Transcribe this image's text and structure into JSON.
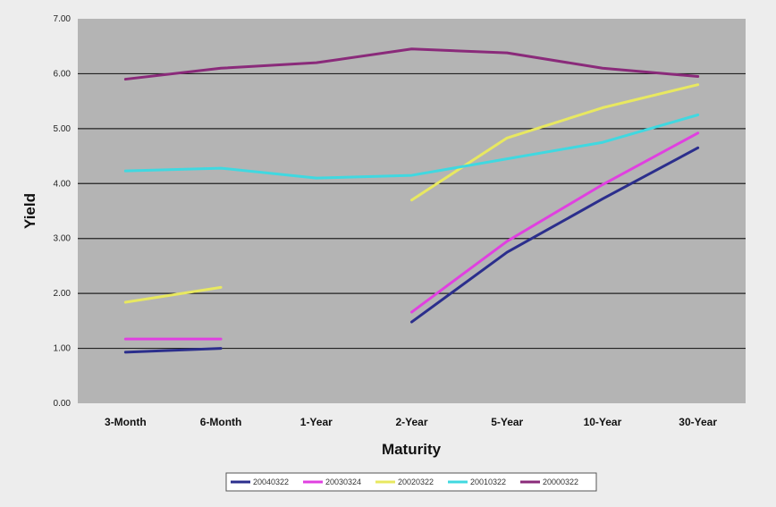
{
  "chart_data": {
    "type": "line",
    "title": "",
    "xlabel": "Maturity",
    "ylabel": "Yield",
    "categories": [
      "3-Month",
      "6-Month",
      "1-Year",
      "2-Year",
      "5-Year",
      "10-Year",
      "30-Year"
    ],
    "ylim": [
      0,
      7
    ],
    "yticks": [
      "0.00",
      "1.00",
      "2.00",
      "3.00",
      "4.00",
      "5.00",
      "6.00",
      "7.00"
    ],
    "grid": true,
    "legend_position": "bottom",
    "series": [
      {
        "name": "20040322",
        "color": "#2b2e8c",
        "values": [
          0.93,
          1.0,
          null,
          1.48,
          2.75,
          3.72,
          4.65
        ]
      },
      {
        "name": "20030324",
        "color": "#e040e0",
        "values": [
          1.17,
          1.17,
          null,
          1.66,
          2.95,
          3.98,
          4.92
        ]
      },
      {
        "name": "20020322",
        "color": "#e8e860",
        "values": [
          1.84,
          2.11,
          null,
          3.7,
          4.83,
          5.38,
          5.8
        ]
      },
      {
        "name": "20010322",
        "color": "#40d8e0",
        "values": [
          4.23,
          4.28,
          4.1,
          4.15,
          4.45,
          4.75,
          5.25
        ]
      },
      {
        "name": "20000322",
        "color": "#8a2a7a",
        "values": [
          5.9,
          6.1,
          6.2,
          6.45,
          6.38,
          6.1,
          5.95
        ]
      }
    ],
    "colors": {
      "plot_background": "#b4b4b4",
      "gridline": "#222222"
    }
  }
}
